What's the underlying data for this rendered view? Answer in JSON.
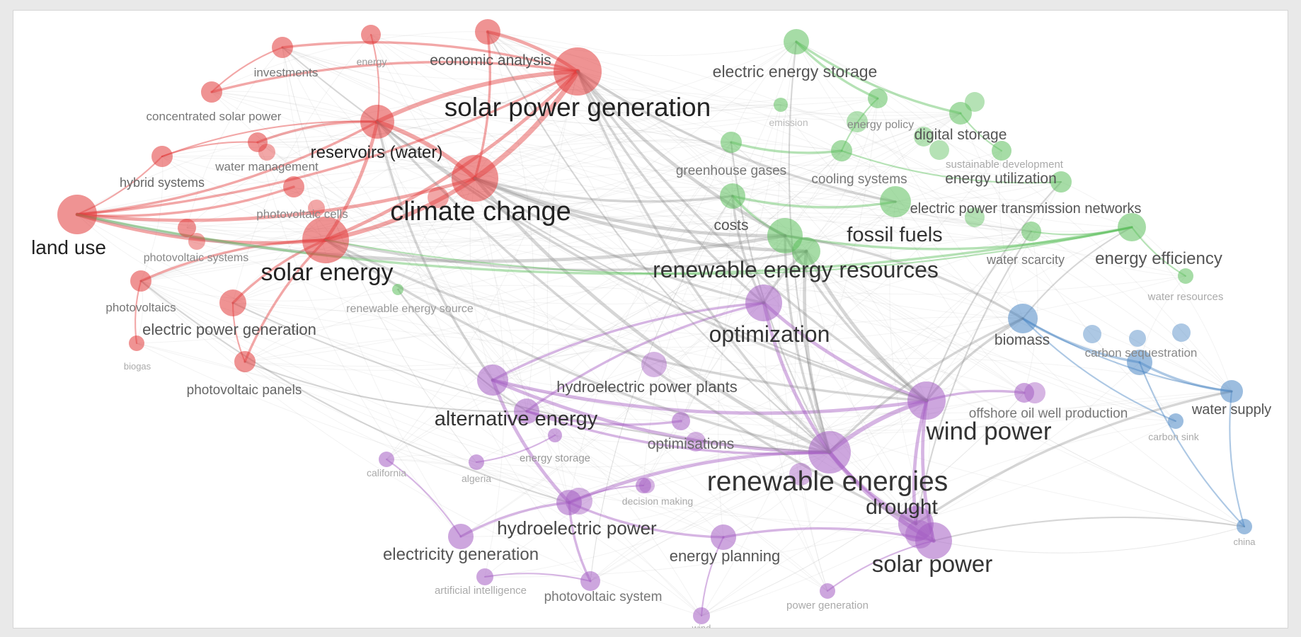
{
  "colors": {
    "background": "#ffffff",
    "frame": "#e9e9e9",
    "cluster_red": "#e23b3b",
    "cluster_green": "#5cbf5c",
    "cluster_purple": "#a45cc2",
    "cluster_blue": "#4a86c4",
    "neutral_link": "#8a8a8a"
  },
  "clusters": {
    "red": "#e23b3b",
    "green": "#5cbf5c",
    "purple": "#a45cc2",
    "blue": "#4a86c4"
  },
  "nodes": [
    {
      "id": "solar_power_generation",
      "label": "solar power generation",
      "cluster": "red",
      "weight": 10
    },
    {
      "id": "climate_change",
      "label": "climate change",
      "cluster": "red",
      "weight": 10
    },
    {
      "id": "solar_energy",
      "label": "solar energy",
      "cluster": "red",
      "weight": 9
    },
    {
      "id": "land_use",
      "label": "land use",
      "cluster": "red",
      "weight": 8
    },
    {
      "id": "reservoirs_water",
      "label": "reservoirs (water)",
      "cluster": "red",
      "weight": 6
    },
    {
      "id": "economic_analysis",
      "label": "economic analysis",
      "cluster": "red",
      "weight": 4
    },
    {
      "id": "energy",
      "label": "energy",
      "cluster": "red",
      "weight": 3
    },
    {
      "id": "investments",
      "label": "investments",
      "cluster": "red",
      "weight": 3
    },
    {
      "id": "concentrated_solar_power",
      "label": "concentrated solar power",
      "cluster": "red",
      "weight": 3
    },
    {
      "id": "water_management",
      "label": "water management",
      "cluster": "red",
      "weight": 3
    },
    {
      "id": "hybrid_systems",
      "label": "hybrid systems",
      "cluster": "red",
      "weight": 3
    },
    {
      "id": "photovoltaic_cells",
      "label": "photovoltaic cells",
      "cluster": "red",
      "weight": 3
    },
    {
      "id": "photovoltaic_systems",
      "label": "photovoltaic systems",
      "cluster": "red",
      "weight": 3
    },
    {
      "id": "photovoltaics",
      "label": "photovoltaics",
      "cluster": "red",
      "weight": 3
    },
    {
      "id": "electric_power_generation",
      "label": "electric power generation",
      "cluster": "red",
      "weight": 4
    },
    {
      "id": "biogas",
      "label": "biogas",
      "cluster": "red",
      "weight": 2
    },
    {
      "id": "photovoltaic_panels",
      "label": "photovoltaic panels",
      "cluster": "red",
      "weight": 3
    },
    {
      "id": "electric_energy_storage",
      "label": "electric energy storage",
      "cluster": "green",
      "weight": 4
    },
    {
      "id": "emission",
      "label": "emission",
      "cluster": "green",
      "weight": 2
    },
    {
      "id": "energy_policy",
      "label": "energy policy",
      "cluster": "green",
      "weight": 3
    },
    {
      "id": "digital_storage",
      "label": "digital storage",
      "cluster": "green",
      "weight": 4
    },
    {
      "id": "sustainable_development",
      "label": "sustainable development",
      "cluster": "green",
      "weight": 2
    },
    {
      "id": "greenhouse_gases",
      "label": "greenhouse gases",
      "cluster": "green",
      "weight": 4
    },
    {
      "id": "cooling_systems",
      "label": "cooling systems",
      "cluster": "green",
      "weight": 3
    },
    {
      "id": "energy_utilization",
      "label": "energy utilization",
      "cluster": "green",
      "weight": 4
    },
    {
      "id": "electric_power_transmission_networks",
      "label": "electric power transmission networks",
      "cluster": "green",
      "weight": 5
    },
    {
      "id": "costs",
      "label": "costs",
      "cluster": "green",
      "weight": 5
    },
    {
      "id": "fossil_fuels",
      "label": "fossil fuels",
      "cluster": "green",
      "weight": 6
    },
    {
      "id": "water_scarcity",
      "label": "water scarcity",
      "cluster": "green",
      "weight": 3
    },
    {
      "id": "energy_efficiency",
      "label": "energy efficiency",
      "cluster": "green",
      "weight": 4
    },
    {
      "id": "water_resources",
      "label": "water resources",
      "cluster": "green",
      "weight": 2
    },
    {
      "id": "renewable_energy_resources",
      "label": "renewable energy resources",
      "cluster": "green",
      "weight": 7
    },
    {
      "id": "renewable_energy_source",
      "label": "renewable energy source",
      "cluster": "green",
      "weight": 2
    },
    {
      "id": "optimization",
      "label": "optimization",
      "cluster": "purple",
      "weight": 6
    },
    {
      "id": "hydroelectric_power_plants",
      "label": "hydroelectric power plants",
      "cluster": "purple",
      "weight": 5
    },
    {
      "id": "alternative_energy",
      "label": "alternative energy",
      "cluster": "purple",
      "weight": 6
    },
    {
      "id": "optimisations",
      "label": "optimisations",
      "cluster": "purple",
      "weight": 3
    },
    {
      "id": "wind_power",
      "label": "wind power",
      "cluster": "purple",
      "weight": 7
    },
    {
      "id": "offshore_oil_well_production",
      "label": "offshore oil well production",
      "cluster": "purple",
      "weight": 3
    },
    {
      "id": "energy_storage",
      "label": "energy storage",
      "cluster": "purple",
      "weight": 2
    },
    {
      "id": "california",
      "label": "california",
      "cluster": "purple",
      "weight": 2
    },
    {
      "id": "algeria",
      "label": "algeria",
      "cluster": "purple",
      "weight": 2
    },
    {
      "id": "decision_making",
      "label": "decision making",
      "cluster": "purple",
      "weight": 2
    },
    {
      "id": "renewable_energies",
      "label": "renewable energies",
      "cluster": "purple",
      "weight": 9
    },
    {
      "id": "drought",
      "label": "drought",
      "cluster": "purple",
      "weight": 5
    },
    {
      "id": "hydroelectric_power",
      "label": "hydroelectric power",
      "cluster": "purple",
      "weight": 6
    },
    {
      "id": "electricity_generation",
      "label": "electricity generation",
      "cluster": "purple",
      "weight": 4
    },
    {
      "id": "energy_planning",
      "label": "energy planning",
      "cluster": "purple",
      "weight": 4
    },
    {
      "id": "solar_power",
      "label": "solar power",
      "cluster": "purple",
      "weight": 7
    },
    {
      "id": "artificial_intelligence",
      "label": "artificial intelligence",
      "cluster": "purple",
      "weight": 2
    },
    {
      "id": "photovoltaic_system",
      "label": "photovoltaic system",
      "cluster": "purple",
      "weight": 3
    },
    {
      "id": "wind",
      "label": "wind",
      "cluster": "purple",
      "weight": 2
    },
    {
      "id": "power_generation",
      "label": "power generation",
      "cluster": "purple",
      "weight": 2
    },
    {
      "id": "biomass",
      "label": "biomass",
      "cluster": "blue",
      "weight": 5
    },
    {
      "id": "carbon_sequestration",
      "label": "carbon sequestration",
      "cluster": "blue",
      "weight": 3
    },
    {
      "id": "water_supply",
      "label": "water supply",
      "cluster": "blue",
      "weight": 3
    },
    {
      "id": "carbon_sink",
      "label": "carbon sink",
      "cluster": "blue",
      "weight": 2
    },
    {
      "id": "china",
      "label": "china",
      "cluster": "blue",
      "weight": 2
    }
  ]
}
